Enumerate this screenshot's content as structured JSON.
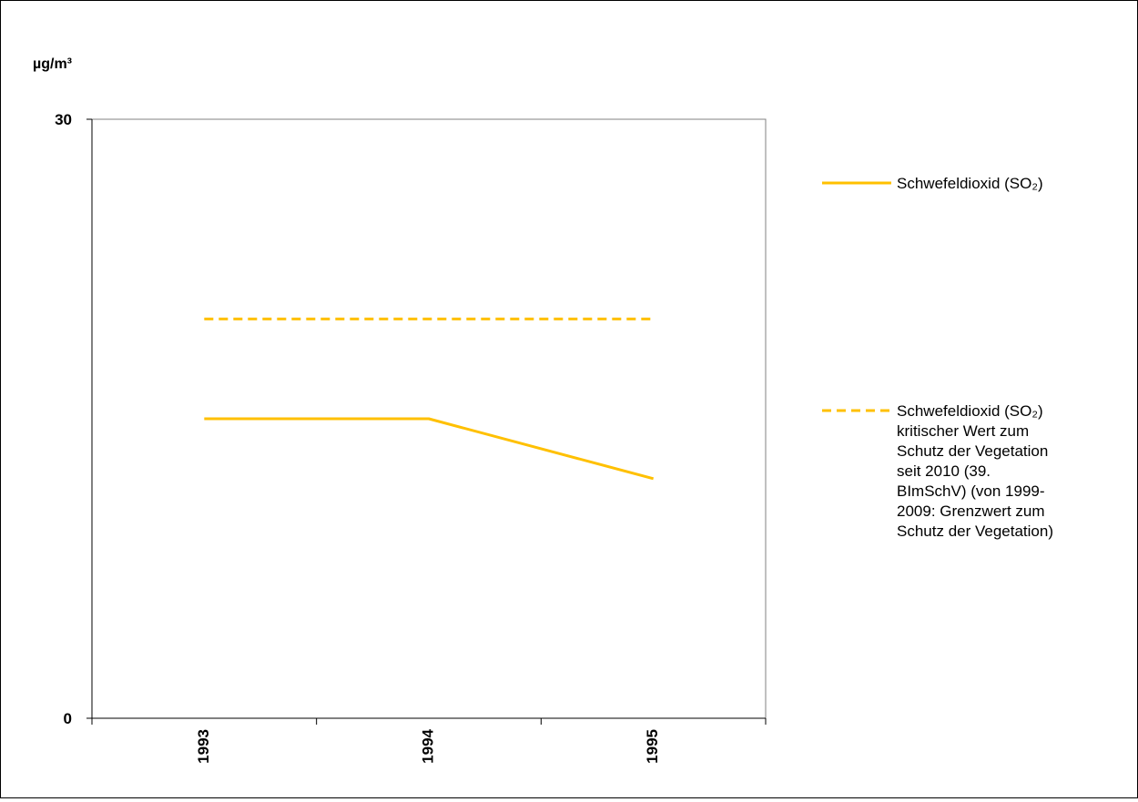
{
  "chart_data": {
    "type": "line",
    "ylabel": "µg/m³",
    "ylim": [
      0,
      30
    ],
    "y_ticks": [
      "0",
      "30"
    ],
    "categories": [
      "1993",
      "1994",
      "1995"
    ],
    "series": [
      {
        "name": "Schwefeldioxid (SO₂)",
        "style": "solid",
        "color": "#FFC000",
        "values": [
          15,
          15,
          12
        ]
      },
      {
        "name": "Schwefeldioxid (SO₂) kritischer Wert zum Schutz der Vegetation seit 2010 (39. BImSchV) (von 1999-2009: Grenzwert zum Schutz der Vegetation)",
        "style": "dashed",
        "color": "#FFC000",
        "values": [
          20,
          20,
          20
        ]
      }
    ],
    "legend": {
      "placement": "right",
      "entries": [
        {
          "lines": [
            "Schwefeldioxid  (SO₂)"
          ]
        },
        {
          "lines": [
            "Schwefeldioxid  (SO₂)",
            "kritischer Wert zum",
            "Schutz der Vegetation",
            "seit 2010  (39.",
            "BImSchV)  (von  1999-",
            "2009:  Grenzwert  zum",
            "Schutz der Vegetation)"
          ]
        }
      ]
    },
    "grid": false
  }
}
